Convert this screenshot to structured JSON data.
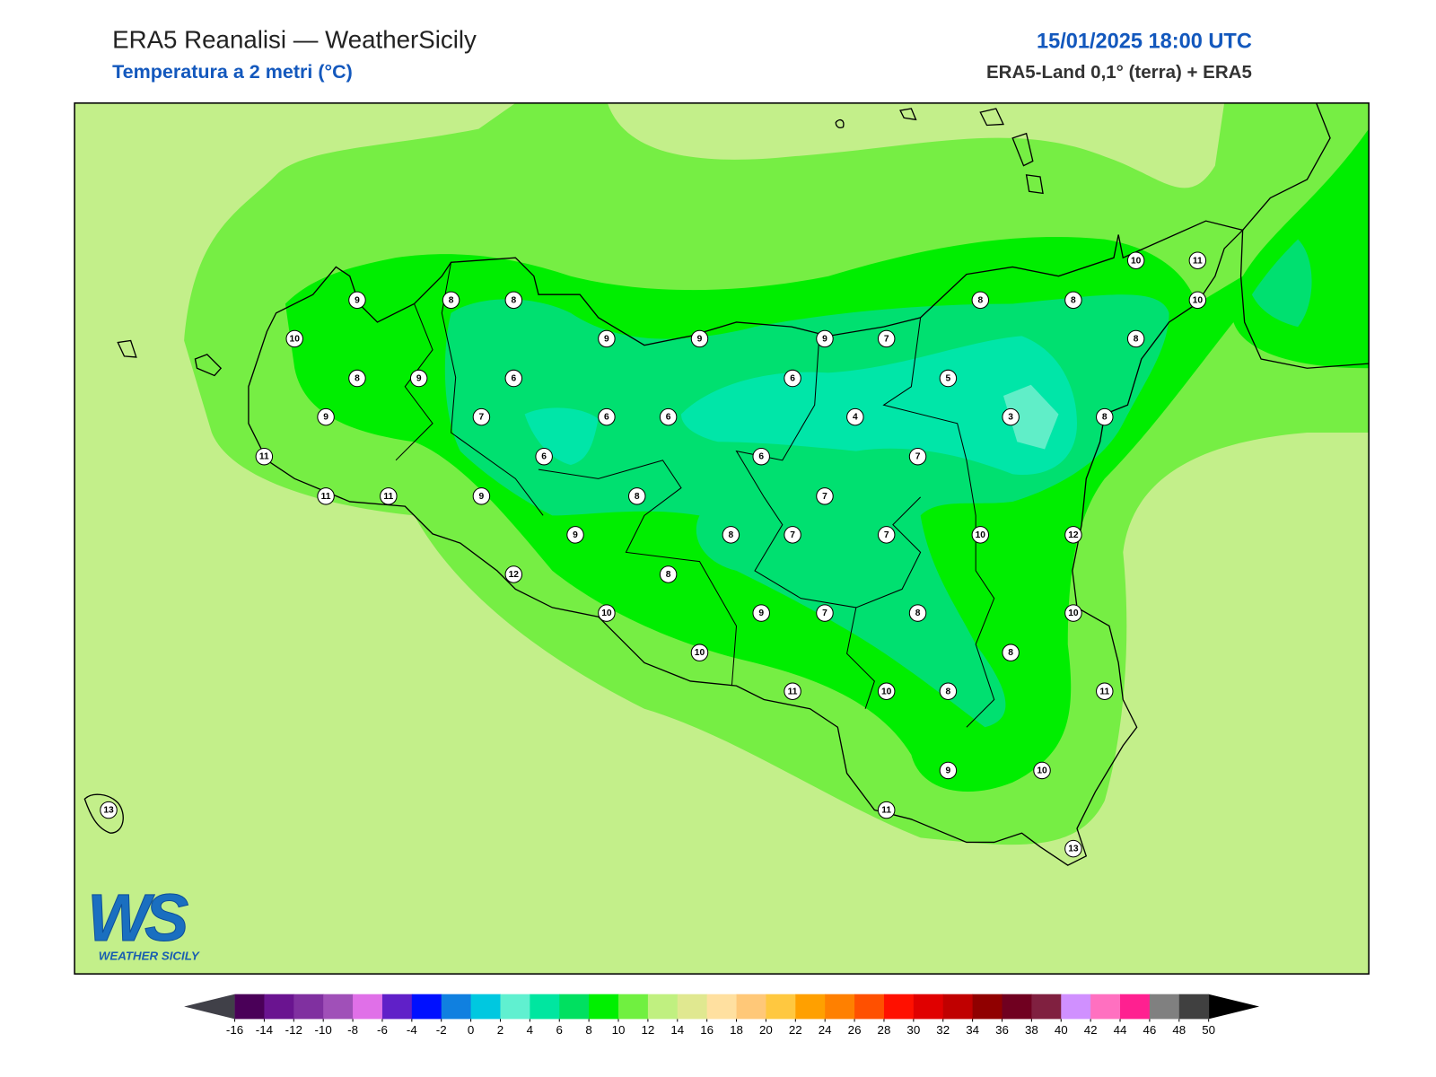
{
  "header": {
    "title": "ERA5 Reanalisi — WeatherSicily",
    "subtitle": "Temperatura a 2 metri (°C)",
    "datetime": "15/01/2025 18:00 UTC",
    "source": "ERA5-Land 0,1° (terra) + ERA5"
  },
  "map": {
    "stations": [
      9,
      8,
      8,
      10,
      9,
      9,
      9,
      7,
      8,
      8,
      10,
      11,
      10,
      8,
      8,
      9,
      6,
      6,
      5,
      9,
      7,
      6,
      6,
      4,
      3,
      8,
      11,
      6,
      6,
      7,
      11,
      11,
      9,
      8,
      7,
      9,
      8,
      7,
      7,
      10,
      12,
      12,
      8,
      10,
      9,
      7,
      8,
      10,
      10,
      8,
      11,
      10,
      8,
      11,
      9,
      10,
      13,
      11,
      13
    ]
  },
  "colorbar": {
    "ticks": [
      -16,
      -14,
      -12,
      -10,
      -8,
      -6,
      -4,
      -2,
      0,
      2,
      4,
      6,
      8,
      10,
      12,
      14,
      16,
      18,
      20,
      22,
      24,
      26,
      28,
      30,
      32,
      34,
      36,
      38,
      40,
      42,
      44,
      46,
      48,
      50
    ],
    "colors": [
      "#4a0058",
      "#6a1490",
      "#8030a0",
      "#a050b8",
      "#e070e8",
      "#6020c8",
      "#0010ff",
      "#1080e0",
      "#00c8e0",
      "#60f0d0",
      "#00e6a0",
      "#00e060",
      "#00f000",
      "#70f040",
      "#c0f080",
      "#e0e890",
      "#ffe0a0",
      "#ffc878",
      "#ffc840",
      "#ffa000",
      "#ff8000",
      "#ff5000",
      "#ff1000",
      "#e00000",
      "#c00000",
      "#900000",
      "#700020",
      "#802040",
      "#d090ff",
      "#ff70c0",
      "#ff2090",
      "#808080",
      "#404040"
    ],
    "under_color": "#404048",
    "over_color": "#000000"
  },
  "logo": {
    "letters": "WS",
    "text": "WEATHER SICILY"
  }
}
